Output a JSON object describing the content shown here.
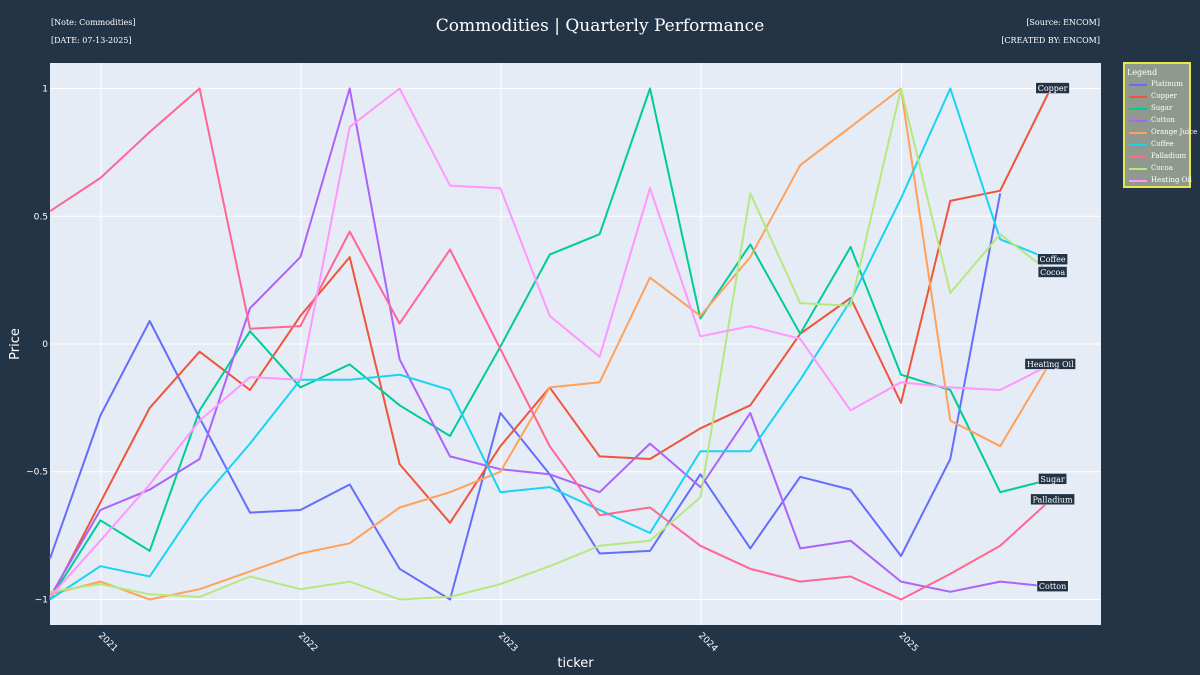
{
  "header": {
    "note": "[Note: Commodities]",
    "date": "[DATE: 07-13-2025]",
    "source": "[Source: ENCOM]",
    "created_by": "[CREATED BY: ENCOM]",
    "title": "Commodities | Quarterly Performance"
  },
  "legend": {
    "title": "Legend"
  },
  "colors": {
    "page_bg": "#243447",
    "plot_bg": "#e5ecf6",
    "grid": "#ffffff",
    "legend_bg": "#90998e",
    "legend_border": "#e8e84a"
  },
  "chart_data": {
    "type": "line",
    "title": "Commodities | Quarterly Performance",
    "xlabel": "ticker",
    "ylabel": "Price",
    "ylim": [
      -1.1,
      1.1
    ],
    "xlim": [
      "2020-09-30",
      "2025-12-31"
    ],
    "y_ticks": [
      1,
      0.5,
      0,
      -0.5,
      -1
    ],
    "y_tick_labels": [
      "1",
      "0.5",
      "0",
      "−0.5",
      "−1"
    ],
    "x_ticks": [
      "2021-01-01",
      "2022-01-01",
      "2023-01-01",
      "2024-01-01",
      "2025-01-01"
    ],
    "x_tick_labels": [
      "2021",
      "2022",
      "2023",
      "2024",
      "2025"
    ],
    "grid": true,
    "legend_position": "right",
    "x": [
      "2020-09-30",
      "2020-12-31",
      "2021-03-31",
      "2021-06-30",
      "2021-09-30",
      "2021-12-31",
      "2022-03-31",
      "2022-06-30",
      "2022-09-30",
      "2022-12-31",
      "2023-03-31",
      "2023-06-30",
      "2023-09-30",
      "2023-12-31",
      "2024-03-31",
      "2024-06-30",
      "2024-09-30",
      "2024-12-31",
      "2025-03-31",
      "2025-06-30",
      "2025-09-30"
    ],
    "series": [
      {
        "name": "Platinum",
        "color": "#636efa",
        "values": [
          -0.84,
          -0.28,
          0.09,
          -0.29,
          -0.66,
          -0.65,
          -0.55,
          -0.88,
          -1.0,
          -0.27,
          -0.51,
          -0.82,
          -0.81,
          -0.51,
          -0.8,
          -0.52,
          -0.57,
          -0.83,
          -0.45,
          0.59,
          null
        ]
      },
      {
        "name": "Copper",
        "color": "#ef553b",
        "values": [
          -1.0,
          -0.62,
          -0.25,
          -0.03,
          -0.18,
          0.11,
          0.34,
          -0.47,
          -0.7,
          -0.4,
          -0.17,
          -0.44,
          -0.45,
          -0.33,
          -0.24,
          0.04,
          0.18,
          -0.23,
          0.56,
          0.6,
          1.0
        ]
      },
      {
        "name": "Sugar",
        "color": "#00cc96",
        "values": [
          -1.0,
          -0.69,
          -0.81,
          -0.26,
          0.05,
          -0.17,
          -0.08,
          -0.24,
          -0.36,
          -0.01,
          0.35,
          0.43,
          1.0,
          0.1,
          0.39,
          0.04,
          0.38,
          -0.12,
          -0.18,
          -0.58,
          -0.53
        ]
      },
      {
        "name": "Cotton",
        "color": "#ab63fa",
        "values": [
          -0.99,
          -0.65,
          -0.57,
          -0.45,
          0.14,
          0.34,
          1.0,
          -0.06,
          -0.44,
          -0.49,
          -0.51,
          -0.58,
          -0.39,
          -0.56,
          -0.27,
          -0.8,
          -0.77,
          -0.93,
          -0.97,
          -0.93,
          -0.95
        ]
      },
      {
        "name": "Orange Juice",
        "color": "#ffa15a",
        "values": [
          -0.98,
          -0.93,
          -1.0,
          -0.96,
          -0.89,
          -0.82,
          -0.78,
          -0.64,
          -0.58,
          -0.5,
          -0.17,
          -0.15,
          0.26,
          0.11,
          0.34,
          0.7,
          0.85,
          1.0,
          -0.3,
          -0.4,
          -0.07
        ]
      },
      {
        "name": "Coffee",
        "color": "#19d3f3",
        "values": [
          -1.0,
          -0.87,
          -0.91,
          -0.62,
          -0.39,
          -0.14,
          -0.14,
          -0.12,
          -0.18,
          -0.58,
          -0.56,
          -0.65,
          -0.74,
          -0.42,
          -0.42,
          -0.14,
          0.17,
          0.57,
          1.0,
          0.41,
          0.33
        ]
      },
      {
        "name": "Palladium",
        "color": "#ff6692",
        "values": [
          0.52,
          0.65,
          0.83,
          1.0,
          0.06,
          0.07,
          0.44,
          0.08,
          0.37,
          -0.02,
          -0.4,
          -0.67,
          -0.64,
          -0.79,
          -0.88,
          -0.93,
          -0.91,
          -1.0,
          -0.9,
          -0.79,
          -0.61
        ]
      },
      {
        "name": "Cocoa",
        "color": "#b6e880",
        "values": [
          -0.97,
          -0.94,
          -0.98,
          -0.99,
          -0.91,
          -0.96,
          -0.93,
          -1.0,
          -0.99,
          -0.94,
          -0.87,
          -0.79,
          -0.77,
          -0.6,
          0.59,
          0.16,
          0.15,
          1.0,
          0.2,
          0.43,
          0.28
        ]
      },
      {
        "name": "Heating Oil",
        "color": "#ff97ff",
        "values": [
          -0.99,
          -0.77,
          -0.55,
          -0.3,
          -0.13,
          -0.14,
          0.85,
          1.0,
          0.62,
          0.61,
          0.11,
          -0.05,
          0.61,
          0.03,
          0.07,
          0.02,
          -0.26,
          -0.15,
          -0.17,
          -0.18,
          -0.08
        ]
      }
    ],
    "annotations": [
      {
        "text": "Copper",
        "series": "Copper"
      },
      {
        "text": "Coffee",
        "series": "Coffee"
      },
      {
        "text": "Cocoa",
        "series": "Cocoa"
      },
      {
        "text": "Heating Oil",
        "series": "Heating Oil"
      },
      {
        "text": "Sugar",
        "series": "Sugar"
      },
      {
        "text": "Palladium",
        "series": "Palladium"
      },
      {
        "text": "Cotton",
        "series": "Cotton"
      }
    ]
  }
}
